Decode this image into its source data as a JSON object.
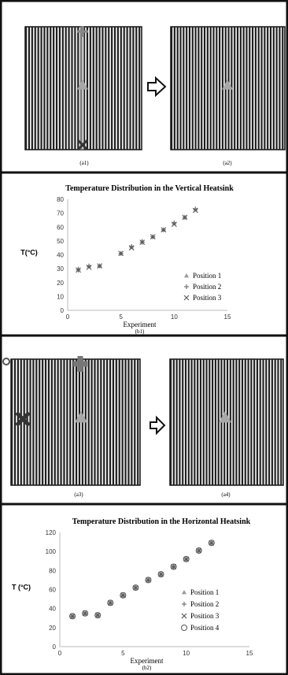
{
  "captions": {
    "a1": "(a1)",
    "a2": "(a2)",
    "b1": "(b1)",
    "a3": "(a3)",
    "a4": "(a4)",
    "b2": "(b2)"
  },
  "colors": {
    "border": "#111111",
    "stripe_dark": "#1e1e1e",
    "stripe_light": "#f2f2f2",
    "marker_gray": "#a8a8a8",
    "marker_dark": "#333333"
  },
  "chart_data": [
    {
      "type": "scatter",
      "title": "Temperature Distribution in the Vertical Heatsink",
      "xlabel": "Experiment",
      "ylabel": "T(°C)",
      "caption": "(b1)",
      "xlim": [
        0,
        15
      ],
      "ylim": [
        0,
        80
      ],
      "xticks": [
        0,
        5,
        10,
        15
      ],
      "yticks": [
        0,
        10,
        20,
        30,
        40,
        50,
        60,
        70,
        80
      ],
      "legend_position": "bottom-right",
      "series": [
        {
          "name": "Position 1",
          "marker": "triangle",
          "x": [
            1,
            2,
            3,
            5,
            6,
            7,
            8,
            9,
            10,
            11,
            12
          ],
          "y": [
            30,
            32,
            32,
            41,
            46,
            50,
            53,
            58,
            63,
            67,
            73
          ]
        },
        {
          "name": "Position 2",
          "marker": "plus",
          "x": [
            1,
            2,
            3,
            5,
            6,
            7,
            8,
            9,
            10,
            11,
            12
          ],
          "y": [
            29,
            32,
            32,
            41,
            46,
            49,
            53,
            58,
            63,
            67,
            73
          ]
        },
        {
          "name": "Position 3",
          "marker": "x",
          "x": [
            1,
            2,
            3,
            5,
            6,
            7,
            8,
            9,
            10,
            11,
            12
          ],
          "y": [
            29,
            31,
            32,
            41,
            45,
            49,
            53,
            58,
            62,
            67,
            72
          ]
        }
      ]
    },
    {
      "type": "scatter",
      "title": "Temperature Distribution in the Horizontal Heatsink",
      "xlabel": "Experiment",
      "ylabel": "T (°C)",
      "caption": "(b2)",
      "xlim": [
        0,
        15
      ],
      "ylim": [
        0,
        120
      ],
      "xticks": [
        0,
        5,
        10,
        15
      ],
      "yticks": [
        0,
        20,
        40,
        60,
        80,
        100,
        120
      ],
      "legend_position": "bottom-right",
      "series": [
        {
          "name": "Position 1",
          "marker": "triangle",
          "x": [
            1,
            2,
            3,
            4,
            5,
            6,
            7,
            8,
            9,
            10,
            11,
            12
          ],
          "y": [
            32,
            35,
            33,
            46,
            54,
            62,
            70,
            76,
            84,
            92,
            101,
            109
          ]
        },
        {
          "name": "Position 2",
          "marker": "plus",
          "x": [
            1,
            2,
            3,
            4,
            5,
            6,
            7,
            8,
            9,
            10,
            11,
            12
          ],
          "y": [
            32,
            35,
            33,
            46,
            54,
            62,
            70,
            76,
            84,
            92,
            101,
            109
          ]
        },
        {
          "name": "Position 3",
          "marker": "x",
          "x": [
            1,
            2,
            3,
            4,
            5,
            6,
            7,
            8,
            9,
            10,
            11,
            12
          ],
          "y": [
            32,
            35,
            33,
            46,
            54,
            62,
            70,
            76,
            84,
            92,
            101,
            109
          ]
        },
        {
          "name": "Position 4",
          "marker": "circle",
          "x": [
            1,
            2,
            3,
            4,
            5,
            6,
            7,
            8,
            9,
            10,
            11,
            12
          ],
          "y": [
            32,
            35,
            33,
            46,
            54,
            62,
            70,
            76,
            84,
            92,
            101,
            109
          ]
        }
      ]
    }
  ]
}
